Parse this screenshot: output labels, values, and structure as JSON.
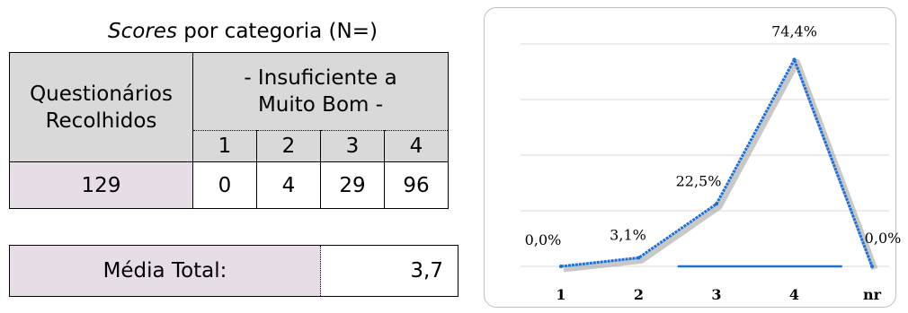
{
  "caption": {
    "italic": "Scores",
    "rest": " por categoria (N=)"
  },
  "table": {
    "row_header": "Questionários Recolhidos",
    "group_header_line1": "- Insuficiente  a",
    "group_header_line2": "Muito Bom -",
    "columns": [
      "1",
      "2",
      "3",
      "4"
    ],
    "total": "129",
    "counts": [
      "0",
      "4",
      "29",
      "96"
    ]
  },
  "media": {
    "label": "Média Total:",
    "value": "3,7"
  },
  "chart_data": {
    "type": "line",
    "categories": [
      "1",
      "2",
      "3",
      "4",
      "nr"
    ],
    "values": [
      0.0,
      3.1,
      22.5,
      74.4,
      0.0
    ],
    "labels": [
      "0,0%",
      "3,1%",
      "22,5%",
      "74,4%",
      "0,0%"
    ],
    "ylim": [
      0,
      80
    ],
    "grid": true,
    "legend": "none",
    "colors": {
      "line": "#1f6fd6",
      "shadow": "#9a9a9a",
      "grid": "#d9d9d9",
      "baseline": "#1f6fd6"
    }
  }
}
